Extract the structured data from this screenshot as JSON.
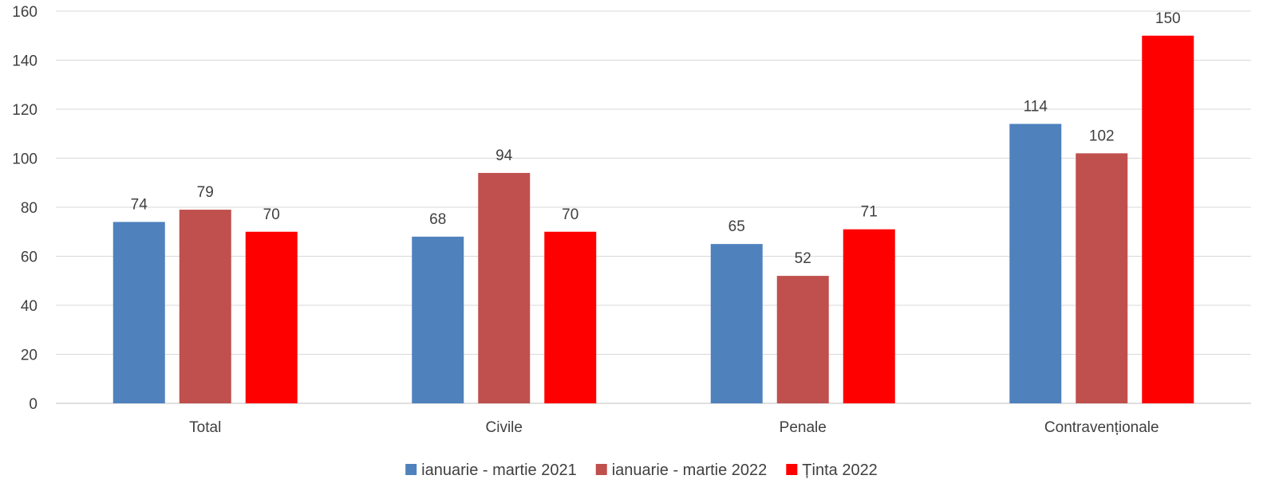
{
  "chart_data": {
    "type": "bar",
    "categories": [
      "Total",
      "Civile",
      "Penale",
      "Contravenționale"
    ],
    "series": [
      {
        "name": "ianuarie - martie 2021",
        "color": "#4F81BD",
        "values": [
          74,
          68,
          65,
          114
        ],
        "labels": [
          "74",
          "68",
          "65",
          "114"
        ]
      },
      {
        "name": "ianuarie - martie 2022",
        "color": "#C0504D",
        "values": [
          79,
          94,
          52,
          102
        ],
        "labels": [
          "79",
          "94",
          "52",
          "102"
        ]
      },
      {
        "name": "Ținta 2022",
        "color": "#FF0000",
        "values": [
          70,
          70,
          71,
          150
        ],
        "labels": [
          "70",
          "70",
          "71",
          "150"
        ]
      }
    ],
    "ylim": [
      0,
      160
    ],
    "yticks": [
      "0",
      "20",
      "40",
      "60",
      "80",
      "100",
      "120",
      "140",
      "160"
    ],
    "grid": true,
    "legend_position": "bottom"
  }
}
